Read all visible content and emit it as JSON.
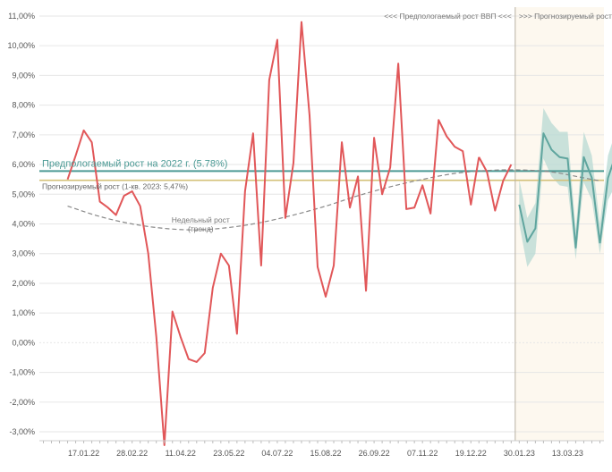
{
  "chart_data": {
    "type": "line",
    "y_unit": "%",
    "ylim": [
      -3.3,
      11.3
    ],
    "y_ticks": [
      "11,00%",
      "10,00%",
      "9,00%",
      "8,00%",
      "7,00%",
      "6,00%",
      "5,00%",
      "4,00%",
      "3,00%",
      "2,00%",
      "1,00%",
      "0,00%",
      "-1,00%",
      "-2,00%",
      "-3,00%"
    ],
    "y_tick_values": [
      11,
      10,
      9,
      8,
      7,
      6,
      5,
      4,
      3,
      2,
      1,
      0,
      -1,
      -2,
      -3
    ],
    "x_ticks": [
      "17.01.22",
      "28.02.22",
      "11.04.22",
      "23.05.22",
      "04.07.22",
      "15.08.22",
      "26.09.22",
      "07.11.22",
      "19.12.22",
      "30.01.23",
      "13.03.23"
    ],
    "x_tick_weeks": [
      2,
      8,
      14,
      20,
      26,
      32,
      38,
      44,
      50,
      56,
      62
    ],
    "x_range_weeks": [
      -3.5,
      66.5
    ],
    "grid": "horizontal",
    "series": [
      {
        "role": "actual",
        "color": "#e15759",
        "week": [
          0,
          1,
          2,
          3,
          4,
          5,
          6,
          7,
          8,
          9,
          10,
          11,
          12,
          13,
          14,
          15,
          16,
          17,
          18,
          19,
          20,
          21,
          22,
          23,
          24,
          25,
          26,
          27,
          28,
          29,
          30,
          31,
          32,
          33,
          34,
          35,
          36,
          37,
          38,
          39,
          40,
          41,
          42,
          43,
          44,
          45,
          46,
          47,
          48,
          49,
          50,
          51
        ],
        "values": [
          5.5,
          6.3,
          7.15,
          6.75,
          4.75,
          4.55,
          4.3,
          4.95,
          5.1,
          4.6,
          3.0,
          0.2,
          -3.45,
          1.05,
          0.2,
          -0.55,
          -0.65,
          -0.35,
          1.85,
          3.0,
          2.6,
          0.3,
          5.1,
          7.05,
          2.6,
          8.85,
          10.2,
          4.2,
          6.05,
          10.8,
          7.65,
          2.55,
          1.55,
          2.6,
          6.75,
          4.55,
          5.6,
          1.75,
          6.9,
          5.0,
          5.9,
          9.4,
          4.5,
          4.55,
          5.3,
          4.35,
          7.5,
          6.95,
          6.6,
          6.45,
          4.65,
          6.25
        ]
      },
      {
        "role": "actual-tail",
        "color": "#e15759",
        "week": [
          51,
          52,
          53,
          54,
          55
        ],
        "values": [
          6.25,
          5.75,
          4.45,
          5.45,
          6.0
        ]
      },
      {
        "role": "forecast",
        "color": "#5fa59e",
        "week": [
          56,
          57,
          58,
          59,
          60,
          61,
          62,
          63,
          64,
          65,
          66
        ],
        "values": [
          4.65,
          3.4,
          3.85,
          7.05,
          6.5,
          6.25,
          6.2,
          3.2,
          6.25,
          5.55,
          3.35
        ]
      },
      {
        "role": "forecast-tail",
        "color": "#5fa59e",
        "week": [
          66,
          67,
          68,
          69
        ],
        "values": [
          3.35,
          5.55,
          6.35,
          4.55
        ]
      },
      {
        "role": "trend",
        "label": "Недельный рост\n(тренд)",
        "color": "#888888",
        "week": [
          0,
          4,
          8,
          12,
          16,
          20,
          24,
          28,
          32,
          36,
          40,
          44,
          48,
          52,
          56,
          60,
          64,
          66
        ],
        "values": [
          4.6,
          4.25,
          4.0,
          3.85,
          3.8,
          3.88,
          4.05,
          4.3,
          4.6,
          4.95,
          5.25,
          5.5,
          5.7,
          5.8,
          5.82,
          5.75,
          5.55,
          5.45
        ]
      }
    ],
    "band": {
      "week": [
        56,
        57,
        58,
        59,
        60,
        61,
        62,
        63,
        64,
        65,
        66,
        67,
        68,
        69
      ],
      "lower": [
        4.0,
        2.55,
        3.0,
        6.2,
        5.6,
        5.3,
        5.25,
        2.8,
        5.4,
        4.8,
        3.0,
        4.8,
        5.35,
        3.7
      ],
      "upper": [
        5.5,
        4.2,
        4.7,
        7.9,
        7.4,
        7.1,
        7.1,
        3.8,
        7.1,
        6.3,
        4.0,
        6.3,
        7.15,
        5.4
      ]
    },
    "reference_lines": [
      {
        "label": "Предпологаемый рост на 2022 г. (5.78%)",
        "value": 5.78,
        "color": "#4c9a95"
      },
      {
        "label": "Прогнозируемый рост (1-кв. 2023: 5,47%)",
        "value": 5.47,
        "color": "#d4c17a"
      }
    ],
    "regions": [
      {
        "label": "<<< Предпологаемый рост ВВП <<<",
        "from_week": -3.5,
        "to_week": 55.5
      },
      {
        "label": ">>> Прогнозируемый рост ВВП >>>",
        "from_week": 55.5,
        "to_week": 66.5,
        "color": "#fdf8ef"
      }
    ],
    "divider_week": 55.5
  }
}
